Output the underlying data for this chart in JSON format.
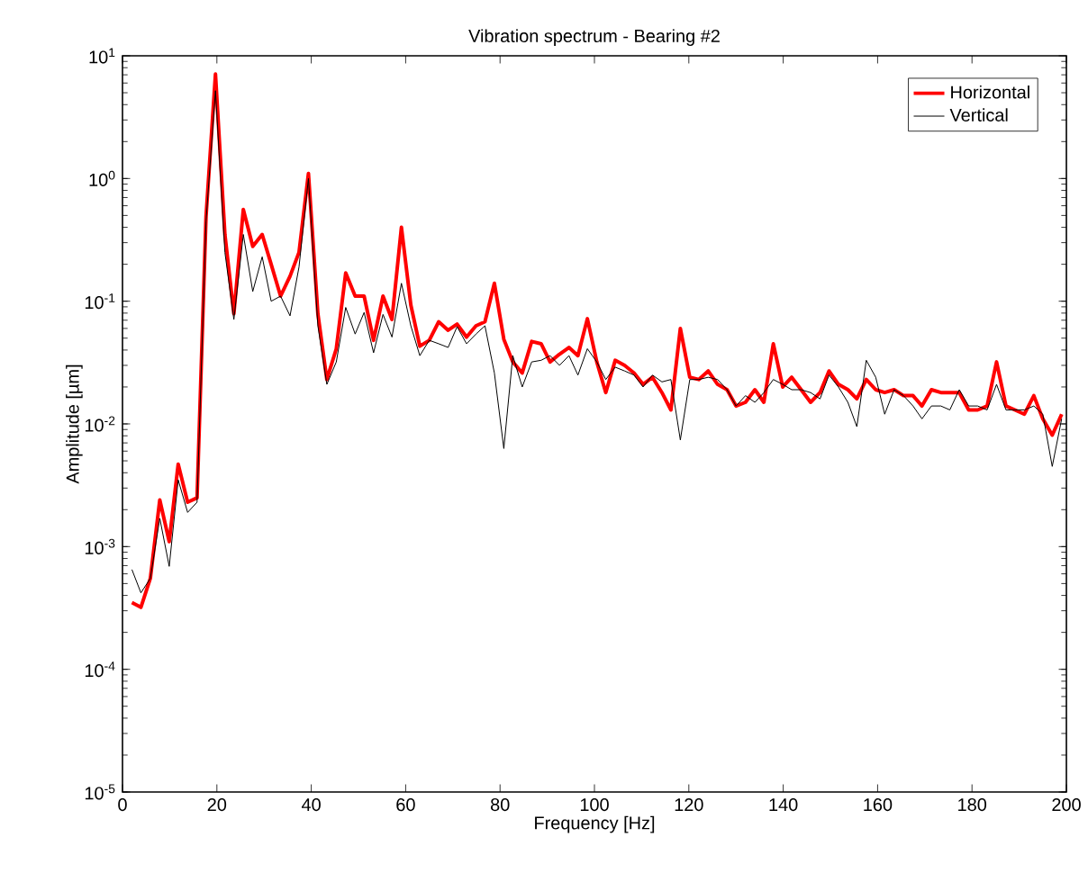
{
  "chart_data": {
    "type": "line",
    "title": "Vibration spectrum - Bearing #2",
    "xlabel": "Frequency [Hz]",
    "ylabel": "Amplitude [µm]",
    "log": "y",
    "legend": "top right",
    "xlim": [
      0,
      200
    ],
    "xticks": [
      0,
      20,
      40,
      60,
      80,
      100,
      120,
      140,
      160,
      180,
      200
    ],
    "ylim": [
      1e-05,
      10
    ],
    "yticks": [
      {
        "value": 1e-05,
        "label": "10$^{-5}$"
      },
      {
        "value": 0.0001,
        "label": "10$^{-4}$"
      },
      {
        "value": 0.001,
        "label": "10$^{-3}$"
      },
      {
        "value": 0.01,
        "label": "10$^{-2}$"
      },
      {
        "value": 0.1,
        "label": "10$^{-1}$"
      },
      {
        "value": 1,
        "label": "10$^{0}$"
      },
      {
        "value": 10,
        "label": "10$^{1}$"
      }
    ],
    "x": [
      2.0,
      3.9,
      5.9,
      7.9,
      9.9,
      11.8,
      13.8,
      15.8,
      17.7,
      19.7,
      21.7,
      23.6,
      25.6,
      27.6,
      29.6,
      31.5,
      33.5,
      35.5,
      37.4,
      39.4,
      41.4,
      43.3,
      45.3,
      47.3,
      49.3,
      51.2,
      53.2,
      55.2,
      57.1,
      59.1,
      61.1,
      63.0,
      65.0,
      67.0,
      69.0,
      70.9,
      72.9,
      74.9,
      76.8,
      78.8,
      80.8,
      82.7,
      84.7,
      86.7,
      88.7,
      90.6,
      92.6,
      94.6,
      96.5,
      98.5,
      100.5,
      102.4,
      104.4,
      106.4,
      108.4,
      110.3,
      112.3,
      114.3,
      116.2,
      118.2,
      120.2,
      122.1,
      124.1,
      126.1,
      128.1,
      130.0,
      132.0,
      134.0,
      135.9,
      137.9,
      139.9,
      141.8,
      143.8,
      145.8,
      147.8,
      149.7,
      151.7,
      153.7,
      155.6,
      157.6,
      159.6,
      161.5,
      163.5,
      165.5,
      167.5,
      169.4,
      171.4,
      173.4,
      175.3,
      177.3,
      179.3,
      181.2,
      183.2,
      185.2,
      187.2,
      189.1,
      191.1,
      193.1,
      195.0,
      197.0,
      199.0
    ],
    "series": [
      {
        "name": "Horizontal",
        "color": "#ff0000",
        "values": [
          0.00035,
          0.00032,
          0.00055,
          0.0024,
          0.0011,
          0.0047,
          0.0023,
          0.0025,
          0.49,
          7.1,
          0.35,
          0.079,
          0.56,
          0.28,
          0.35,
          0.2,
          0.11,
          0.16,
          0.25,
          1.1,
          0.079,
          0.023,
          0.041,
          0.17,
          0.11,
          0.11,
          0.048,
          0.11,
          0.071,
          0.4,
          0.093,
          0.043,
          0.048,
          0.068,
          0.058,
          0.065,
          0.051,
          0.063,
          0.068,
          0.14,
          0.049,
          0.032,
          0.026,
          0.047,
          0.045,
          0.032,
          0.037,
          0.042,
          0.036,
          0.072,
          0.032,
          0.018,
          0.033,
          0.03,
          0.026,
          0.021,
          0.024,
          0.018,
          0.013,
          0.06,
          0.024,
          0.023,
          0.027,
          0.021,
          0.019,
          0.014,
          0.015,
          0.019,
          0.015,
          0.045,
          0.02,
          0.024,
          0.019,
          0.015,
          0.018,
          0.027,
          0.021,
          0.019,
          0.016,
          0.023,
          0.019,
          0.018,
          0.019,
          0.017,
          0.017,
          0.014,
          0.019,
          0.018,
          0.018,
          0.018,
          0.013,
          0.013,
          0.014,
          0.032,
          0.014,
          0.013,
          0.012,
          0.017,
          0.011,
          0.0081,
          0.012
        ]
      },
      {
        "name": "Vertical",
        "color": "#000000",
        "values": [
          0.00065,
          0.00042,
          0.00055,
          0.0017,
          0.00069,
          0.0035,
          0.0019,
          0.0023,
          0.45,
          5.2,
          0.25,
          0.071,
          0.35,
          0.12,
          0.23,
          0.1,
          0.11,
          0.076,
          0.19,
          1.0,
          0.063,
          0.021,
          0.032,
          0.089,
          0.054,
          0.081,
          0.038,
          0.078,
          0.051,
          0.14,
          0.063,
          0.036,
          0.048,
          0.045,
          0.042,
          0.062,
          0.045,
          0.054,
          0.063,
          0.026,
          0.0063,
          0.036,
          0.02,
          0.032,
          0.033,
          0.036,
          0.03,
          0.036,
          0.025,
          0.041,
          0.032,
          0.023,
          0.029,
          0.027,
          0.025,
          0.02,
          0.025,
          0.022,
          0.023,
          0.0074,
          0.023,
          0.023,
          0.024,
          0.023,
          0.019,
          0.014,
          0.017,
          0.015,
          0.018,
          0.023,
          0.021,
          0.019,
          0.019,
          0.018,
          0.016,
          0.025,
          0.02,
          0.015,
          0.0095,
          0.033,
          0.024,
          0.012,
          0.019,
          0.017,
          0.014,
          0.011,
          0.014,
          0.014,
          0.013,
          0.019,
          0.014,
          0.014,
          0.013,
          0.021,
          0.013,
          0.013,
          0.013,
          0.014,
          0.012,
          0.0045,
          0.011
        ]
      }
    ]
  }
}
